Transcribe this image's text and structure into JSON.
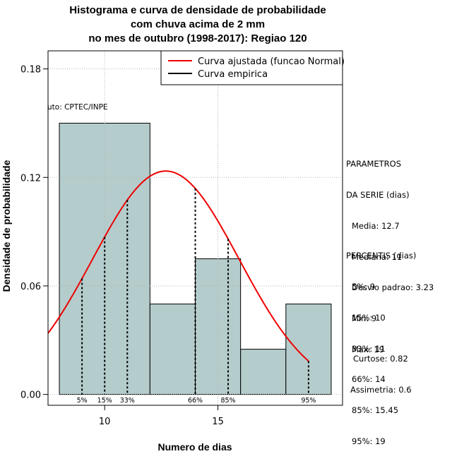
{
  "title_lines": [
    "Histograma e curva de densidade de probabilidade",
    "com chuva acima de 2 mm",
    "no mes de outubro (1998-2017): Regiao 120"
  ],
  "xlabel": "Numero de dias",
  "ylabel": "Densidade de probabilidade",
  "credit": "uto: CPTEC/INPE",
  "legend": {
    "fitted": "Curva ajustada (funcao Normal)",
    "empirical": "Curva empirica"
  },
  "parametros": {
    "header": [
      "PARAMETROS",
      "DA SERIE (dias)"
    ],
    "lines": [
      "Media: 12.7",
      "Mediana: 11",
      "Desvio padrao: 3.23",
      "Min: 9",
      "Max: 19"
    ]
  },
  "percentis": {
    "header": "PERCENTIS (dias)",
    "lines": [
      "5%: 9",
      "15%: 10",
      "33%: 11",
      "66%: 14",
      "85%: 15.45",
      "95%: 19"
    ]
  },
  "moments": [
    "Curtose: 0.82",
    "Assimetria: 0.6"
  ],
  "colors": {
    "bar_fill": "#b5cccc",
    "curve": "#ee0000",
    "grid": "#b0b0b0"
  },
  "chart_data": {
    "type": "bar",
    "subtype": "histogram",
    "bins": [
      {
        "from": 8,
        "to": 12,
        "density": 0.15
      },
      {
        "from": 12,
        "to": 14,
        "density": 0.05
      },
      {
        "from": 14,
        "to": 16,
        "density": 0.075
      },
      {
        "from": 16,
        "to": 18,
        "density": 0.025
      },
      {
        "from": 18,
        "to": 20,
        "density": 0.05
      }
    ],
    "xlim": [
      7.5,
      20.5
    ],
    "ylim": [
      -0.006,
      0.19
    ],
    "x_ticks": [
      10,
      15
    ],
    "y_ticks": [
      0.0,
      0.06,
      0.12,
      0.18
    ],
    "y_tick_labels": [
      "0.00",
      "0.06",
      "0.12",
      "0.18"
    ],
    "grid": true,
    "legend_position": "top-right",
    "normal_fit": {
      "mean": 12.7,
      "sd": 3.23,
      "x_from": 7.5,
      "x_to": 19
    },
    "percentile_markers": [
      {
        "label": "5%",
        "x": 9
      },
      {
        "label": "15%",
        "x": 10
      },
      {
        "label": "33%",
        "x": 11
      },
      {
        "label": "66%",
        "x": 14
      },
      {
        "label": "85%",
        "x": 15.45
      },
      {
        "label": "95%",
        "x": 19
      }
    ]
  }
}
